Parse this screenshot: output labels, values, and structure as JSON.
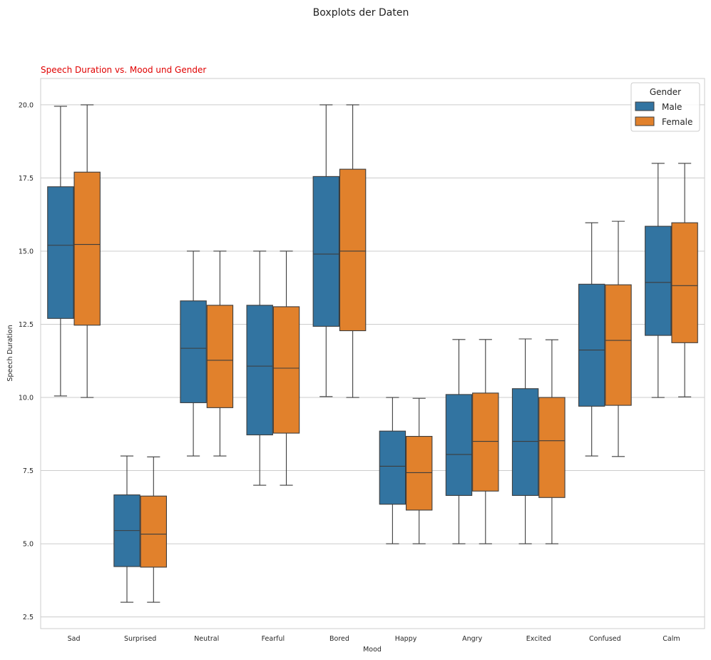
{
  "figure": {
    "suptitle": "Boxplots der Daten"
  },
  "chart_data": {
    "type": "box",
    "title": "Speech Duration vs. Mood und Gender",
    "title_color": "#e00000",
    "xlabel": "Mood",
    "ylabel": "Speech Duration",
    "ylim": [
      2.1,
      20.9
    ],
    "yticks": [
      2.5,
      5.0,
      7.5,
      10.0,
      12.5,
      15.0,
      17.5,
      20.0
    ],
    "ytick_labels": [
      "2.5",
      "5.0",
      "7.5",
      "10.0",
      "12.5",
      "15.0",
      "17.5",
      "20.0"
    ],
    "grid": "horizontal",
    "legend": {
      "title": "Gender",
      "placement": "top-right"
    },
    "categories": [
      "Sad",
      "Surprised",
      "Neutral",
      "Fearful",
      "Bored",
      "Happy",
      "Angry",
      "Excited",
      "Confused",
      "Calm"
    ],
    "series": [
      {
        "name": "Male",
        "color": "#3274a1",
        "stats": [
          {
            "min": 10.05,
            "q1": 12.7,
            "median": 15.2,
            "q3": 17.2,
            "max": 19.95
          },
          {
            "min": 3.0,
            "q1": 4.22,
            "median": 5.45,
            "q3": 6.67,
            "max": 8.0
          },
          {
            "min": 8.0,
            "q1": 9.82,
            "median": 11.68,
            "q3": 13.3,
            "max": 15.0
          },
          {
            "min": 7.0,
            "q1": 8.72,
            "median": 11.07,
            "q3": 13.15,
            "max": 15.0
          },
          {
            "min": 10.03,
            "q1": 12.43,
            "median": 14.9,
            "q3": 17.55,
            "max": 20.0
          },
          {
            "min": 5.0,
            "q1": 6.35,
            "median": 7.65,
            "q3": 8.85,
            "max": 10.0
          },
          {
            "min": 5.0,
            "q1": 6.65,
            "median": 8.05,
            "q3": 10.1,
            "max": 11.98
          },
          {
            "min": 5.0,
            "q1": 6.65,
            "median": 8.5,
            "q3": 10.3,
            "max": 12.0
          },
          {
            "min": 8.0,
            "q1": 9.7,
            "median": 11.62,
            "q3": 13.87,
            "max": 15.97
          },
          {
            "min": 10.0,
            "q1": 12.12,
            "median": 13.93,
            "q3": 15.85,
            "max": 18.0
          }
        ]
      },
      {
        "name": "Female",
        "color": "#e1812c",
        "stats": [
          {
            "min": 10.0,
            "q1": 12.47,
            "median": 15.23,
            "q3": 17.7,
            "max": 20.0
          },
          {
            "min": 3.0,
            "q1": 4.2,
            "median": 5.33,
            "q3": 6.63,
            "max": 7.97
          },
          {
            "min": 8.0,
            "q1": 9.65,
            "median": 11.27,
            "q3": 13.15,
            "max": 15.0
          },
          {
            "min": 7.0,
            "q1": 8.78,
            "median": 11.0,
            "q3": 13.1,
            "max": 15.0
          },
          {
            "min": 10.0,
            "q1": 12.28,
            "median": 15.0,
            "q3": 17.8,
            "max": 20.0
          },
          {
            "min": 5.0,
            "q1": 6.15,
            "median": 7.43,
            "q3": 8.67,
            "max": 9.97
          },
          {
            "min": 5.0,
            "q1": 6.8,
            "median": 8.5,
            "q3": 10.15,
            "max": 11.98
          },
          {
            "min": 5.0,
            "q1": 6.58,
            "median": 8.52,
            "q3": 10.0,
            "max": 11.97
          },
          {
            "min": 7.98,
            "q1": 9.73,
            "median": 11.95,
            "q3": 13.85,
            "max": 16.02
          },
          {
            "min": 10.02,
            "q1": 11.87,
            "median": 13.82,
            "q3": 15.97,
            "max": 18.0
          }
        ]
      }
    ]
  }
}
